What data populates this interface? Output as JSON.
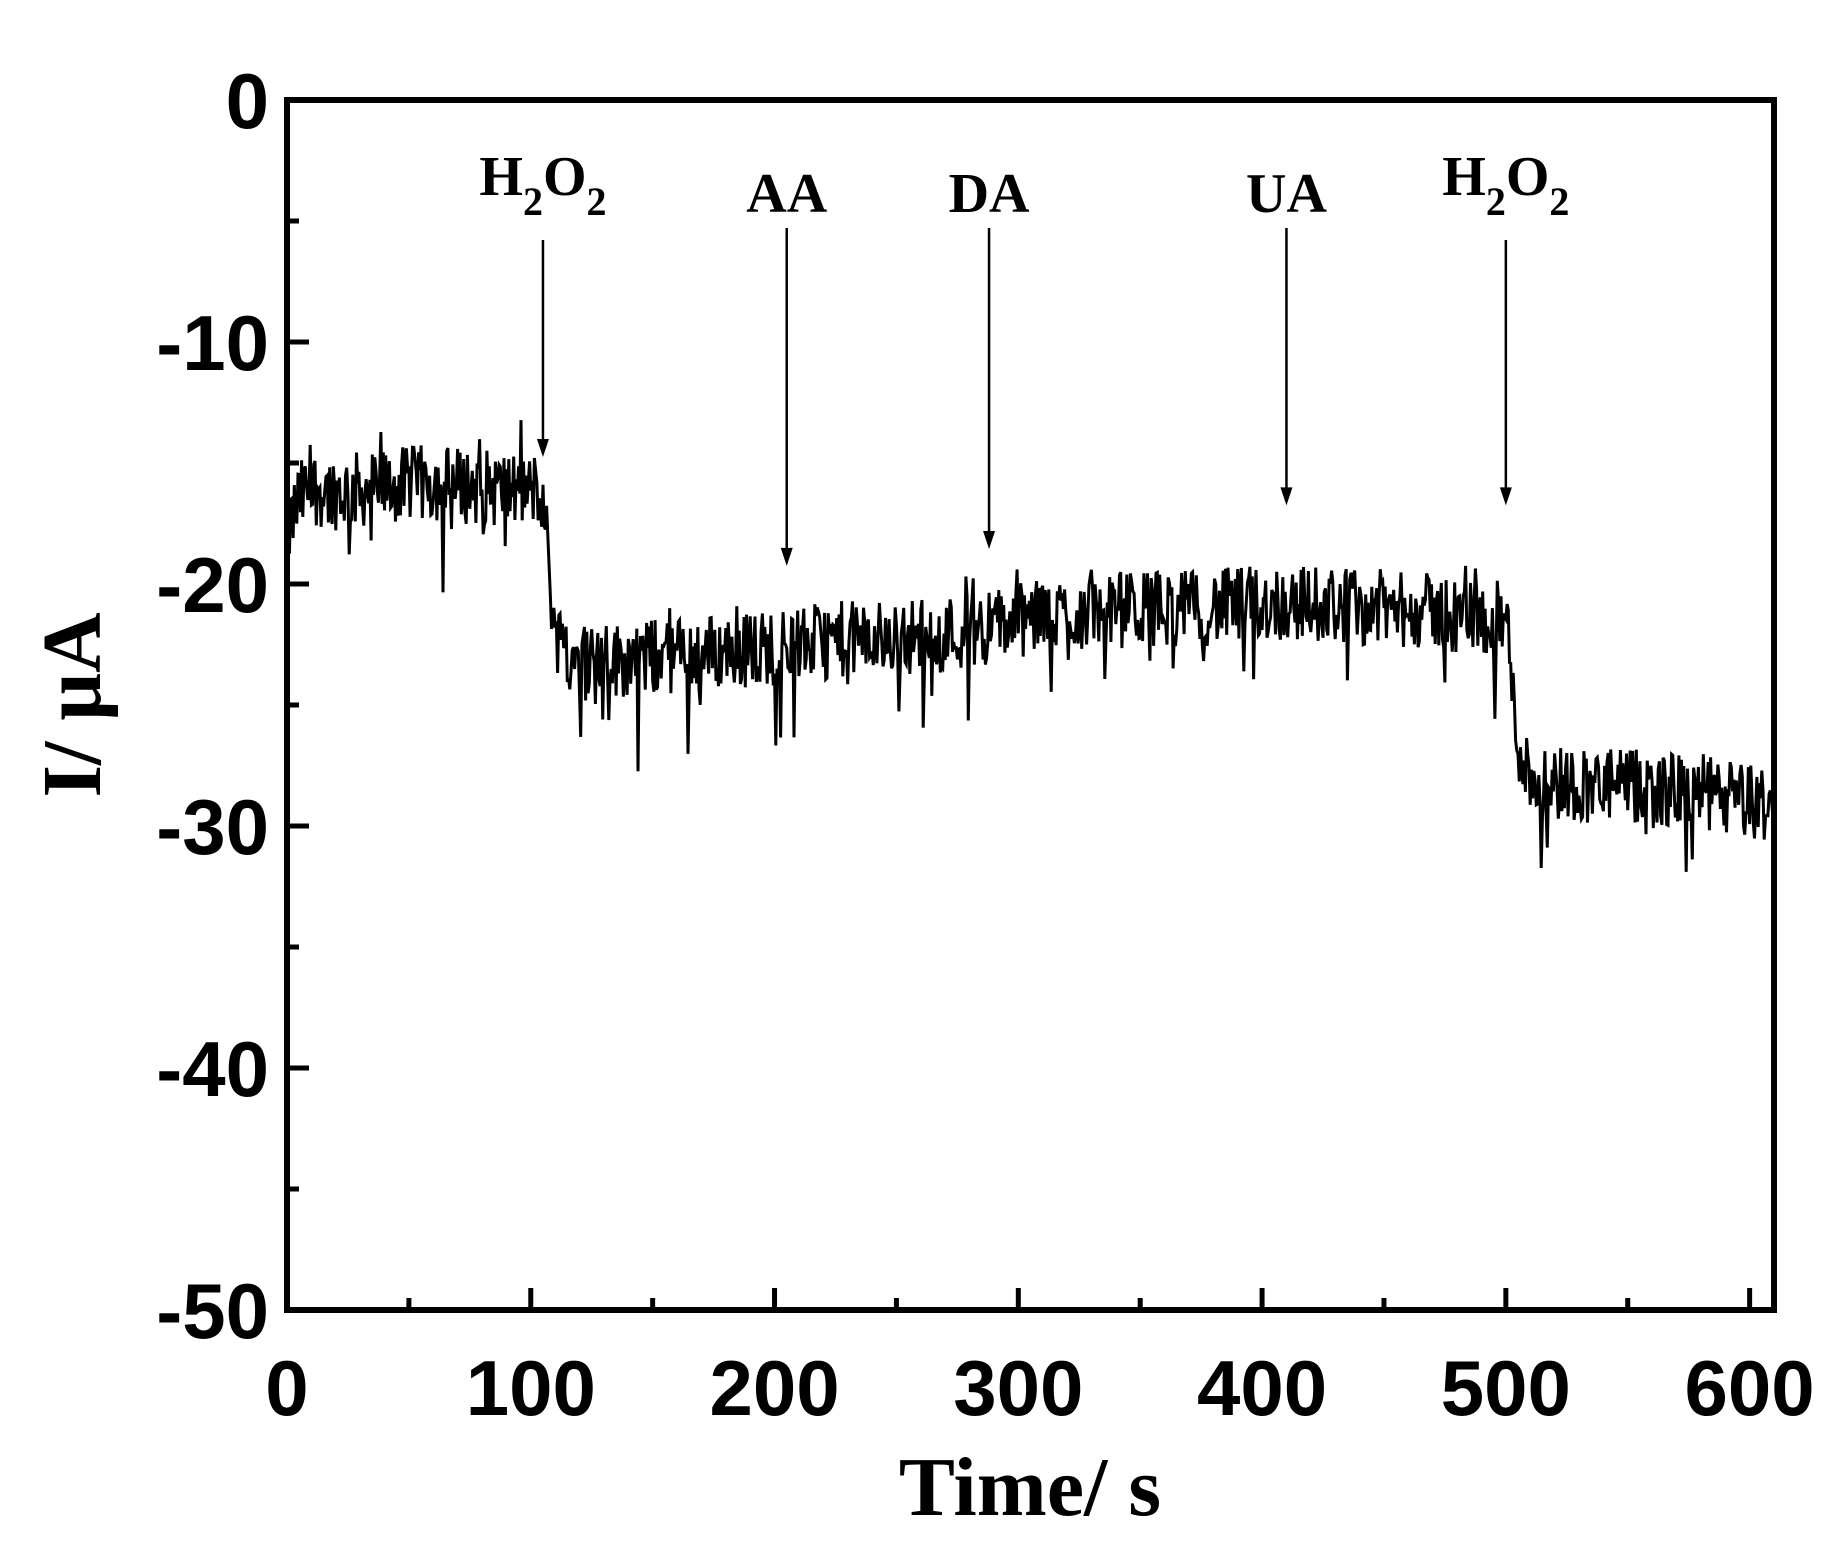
{
  "chart_data": {
    "type": "line",
    "title": "",
    "xlabel": "Time/ s",
    "ylabel": "I/ μA",
    "xlim": [
      0,
      610
    ],
    "ylim": [
      -50,
      0
    ],
    "xticks": [
      0,
      100,
      200,
      300,
      400,
      500,
      600
    ],
    "xtick_labels": [
      "0",
      "100",
      "200",
      "300",
      "400",
      "500",
      "600"
    ],
    "yticks": [
      0,
      -10,
      -20,
      -30,
      -40,
      -50
    ],
    "ytick_labels": [
      "0",
      "-10",
      "-20",
      "-30",
      "-40",
      "-50"
    ],
    "grid": false,
    "line_color": "#000000",
    "series": [
      {
        "x": [
          0,
          5,
          10,
          20,
          40,
          60,
          80,
          100,
          104,
          106,
          108,
          110,
          115,
          120,
          130,
          150,
          175,
          200,
          225,
          250,
          275,
          300,
          325,
          350,
          375,
          400,
          425,
          450,
          475,
          500,
          501,
          503,
          506,
          510,
          520,
          540,
          560,
          580,
          600,
          610
        ],
        "y": [
          -18,
          -16.5,
          -16,
          -16.2,
          -16,
          -15.8,
          -16,
          -16.2,
          -16,
          -17.5,
          -20,
          -22,
          -22.8,
          -23,
          -23.2,
          -23,
          -22.8,
          -22.6,
          -22.3,
          -22.2,
          -22,
          -21.5,
          -21.2,
          -21,
          -21,
          -20.8,
          -20.8,
          -21,
          -21.2,
          -21.5,
          -22,
          -25,
          -27,
          -28,
          -28.2,
          -28.3,
          -28.5,
          -28.6,
          -29,
          -29.2
        ],
        "noise_amplitude": 1.6
      }
    ],
    "annotations": [
      {
        "label": "H",
        "sub1": "2",
        "mid": "O",
        "sub2": "2",
        "x": 105,
        "y_tip": -15
      },
      {
        "label": "AA",
        "x": 205,
        "y_tip": -19.5
      },
      {
        "label": "DA",
        "x": 288,
        "y_tip": -18.8
      },
      {
        "label": "UA",
        "x": 410,
        "y_tip": -17
      },
      {
        "label": "H",
        "sub1": "2",
        "mid": "O",
        "sub2": "2",
        "x": 500,
        "y_tip": -17
      }
    ]
  }
}
